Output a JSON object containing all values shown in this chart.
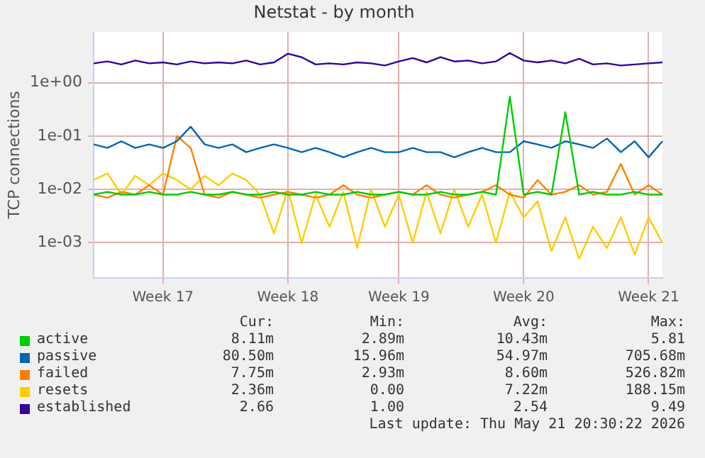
{
  "chart_data": {
    "type": "line",
    "title": "Netstat - by month",
    "ylabel": "TCP connections",
    "log": "y",
    "grid": true,
    "legend": "bottom",
    "marker": "none",
    "line_style": "solid",
    "categories": [
      null,
      null,
      null,
      null,
      null,
      "Week 17",
      null,
      null,
      null,
      null,
      null,
      null,
      null,
      null,
      "Week 18",
      null,
      null,
      null,
      null,
      null,
      null,
      null,
      "Week 19",
      null,
      null,
      null,
      null,
      null,
      null,
      null,
      null,
      "Week 20",
      null,
      null,
      null,
      null,
      null,
      null,
      null,
      null,
      "Week 21",
      null
    ],
    "ylim": [
      0.00022,
      9
    ],
    "yticks": [
      {
        "value": 0.001,
        "label": "1e-03"
      },
      {
        "value": 0.01,
        "label": "1e-02"
      },
      {
        "value": 0.1,
        "label": "1e-01"
      },
      {
        "value": 1,
        "label": "1e+00"
      }
    ],
    "series": [
      {
        "name": "active",
        "color": "#00cc00",
        "values": [
          0.008,
          0.009,
          0.008,
          0.008,
          0.009,
          0.008,
          0.008,
          0.009,
          0.008,
          0.008,
          0.009,
          0.008,
          0.008,
          0.009,
          0.008,
          0.008,
          0.009,
          0.008,
          0.008,
          0.009,
          0.008,
          0.008,
          0.009,
          0.008,
          0.008,
          0.009,
          0.008,
          0.008,
          0.009,
          0.008,
          0.55,
          0.008,
          0.009,
          0.008,
          0.28,
          0.008,
          0.009,
          0.008,
          0.008,
          0.009,
          0.008,
          0.008
        ]
      },
      {
        "name": "passive",
        "color": "#0066b3",
        "values": [
          0.07,
          0.06,
          0.08,
          0.06,
          0.07,
          0.06,
          0.08,
          0.15,
          0.07,
          0.06,
          0.07,
          0.05,
          0.06,
          0.07,
          0.06,
          0.05,
          0.06,
          0.05,
          0.04,
          0.05,
          0.06,
          0.05,
          0.05,
          0.06,
          0.05,
          0.05,
          0.04,
          0.05,
          0.06,
          0.05,
          0.05,
          0.08,
          0.07,
          0.06,
          0.08,
          0.07,
          0.06,
          0.09,
          0.05,
          0.08,
          0.04,
          0.08
        ]
      },
      {
        "name": "failed",
        "color": "#ff8000",
        "values": [
          0.008,
          0.007,
          0.009,
          0.008,
          0.012,
          0.008,
          0.1,
          0.06,
          0.008,
          0.007,
          0.009,
          0.008,
          0.007,
          0.008,
          0.009,
          0.008,
          0.007,
          0.008,
          0.012,
          0.008,
          0.007,
          0.008,
          0.009,
          0.008,
          0.012,
          0.008,
          0.007,
          0.008,
          0.009,
          0.012,
          0.008,
          0.007,
          0.015,
          0.008,
          0.009,
          0.012,
          0.008,
          0.009,
          0.03,
          0.008,
          0.012,
          0.008
        ]
      },
      {
        "name": "resets",
        "color": "#ffcc00",
        "values": [
          0.015,
          0.02,
          0.008,
          0.018,
          0.012,
          0.02,
          0.015,
          0.01,
          0.018,
          0.012,
          0.02,
          0.015,
          0.008,
          0.0015,
          0.01,
          0.001,
          0.008,
          0.002,
          0.009,
          0.0008,
          0.01,
          0.002,
          0.008,
          0.001,
          0.009,
          0.0015,
          0.01,
          0.002,
          0.008,
          0.001,
          0.009,
          0.003,
          0.006,
          0.0007,
          0.003,
          0.0005,
          0.002,
          0.0008,
          0.003,
          0.0006,
          0.003,
          0.001
        ]
      },
      {
        "name": "established",
        "color": "#330099",
        "values": [
          2.3,
          2.5,
          2.2,
          2.6,
          2.3,
          2.4,
          2.2,
          2.5,
          2.3,
          2.4,
          2.3,
          2.6,
          2.2,
          2.4,
          3.5,
          3.0,
          2.2,
          2.3,
          2.2,
          2.4,
          2.3,
          2.1,
          2.5,
          2.9,
          2.4,
          3.0,
          2.5,
          2.6,
          2.3,
          2.5,
          3.6,
          2.6,
          2.4,
          2.6,
          2.3,
          2.8,
          2.2,
          2.3,
          2.1,
          2.2,
          2.3,
          2.4
        ]
      }
    ],
    "annotations": [
      "Cur:",
      "Min:",
      "Avg:",
      "Max:",
      "8.11m",
      "2.89m",
      "10.43m",
      "5.81",
      "80.50m",
      "15.96m",
      "54.97m",
      "705.68m",
      "7.75m",
      "2.93m",
      "8.60m",
      "526.82m",
      "2.36m",
      "0.00",
      "7.22m",
      "188.15m",
      "2.66",
      "1.00",
      "2.54",
      "9.49",
      "Last update: Thu May 21 20:30:22 2026"
    ]
  }
}
